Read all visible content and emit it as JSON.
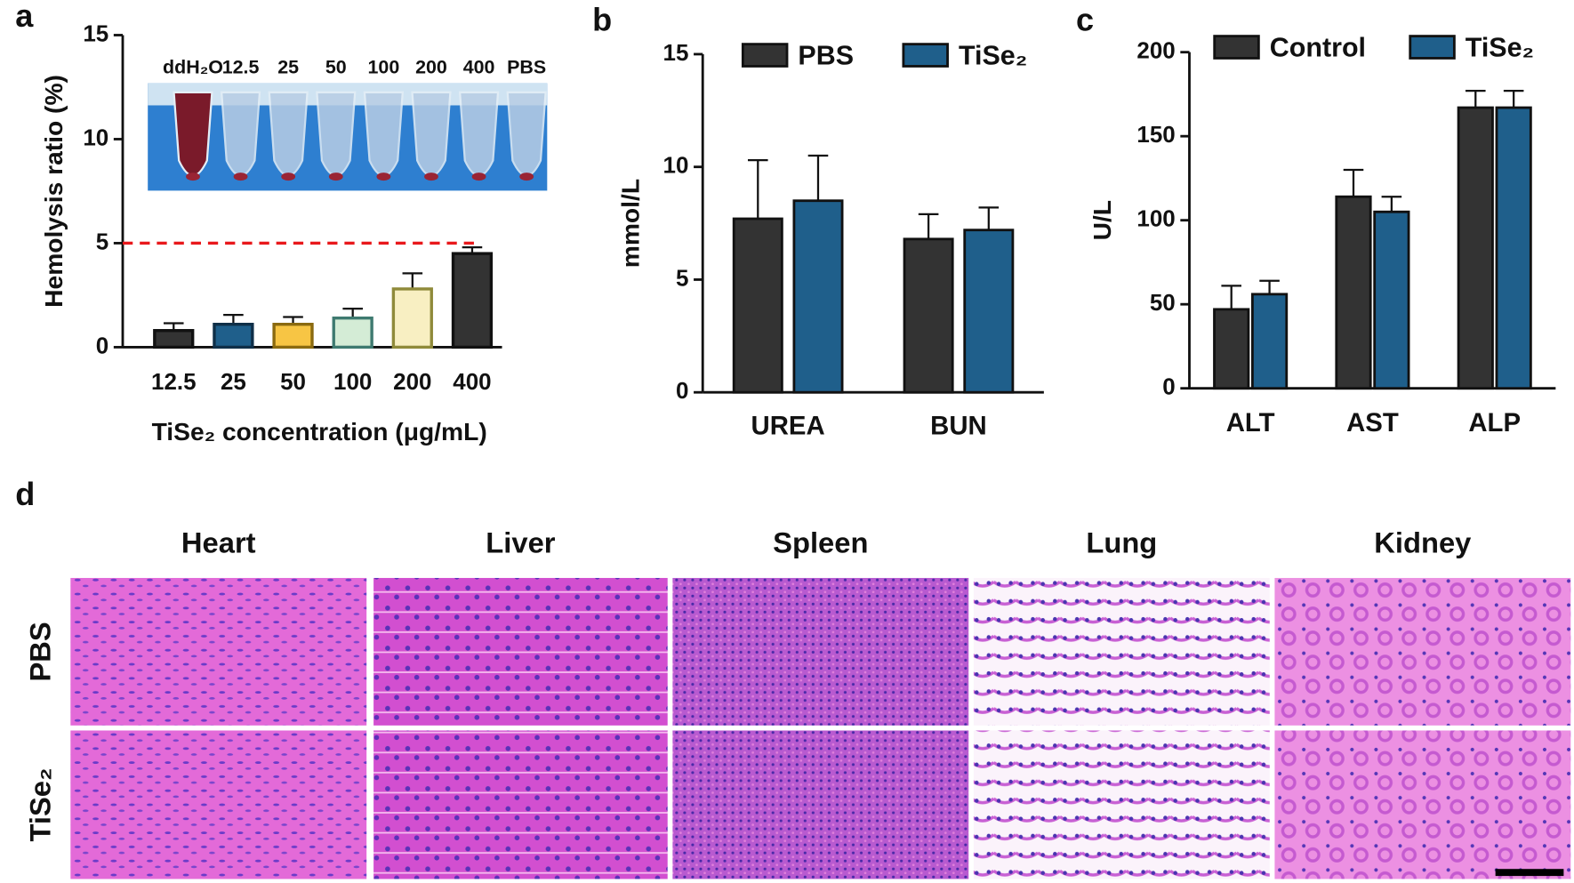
{
  "chart_data": [
    {
      "type": "bar",
      "panel_label": "a",
      "ylabel": "Hemolysis ratio (%)",
      "xlabel": "TiSe₂ concentration (μg/mL)",
      "categories": [
        "12.5",
        "25",
        "50",
        "100",
        "200",
        "400"
      ],
      "values": [
        0.8,
        1.1,
        1.1,
        1.4,
        2.8,
        4.5
      ],
      "errors": [
        0.35,
        0.45,
        0.35,
        0.45,
        0.75,
        0.3
      ],
      "colors": [
        "#333333",
        "#1f5f8b",
        "#f7c544",
        "#d4ecd6",
        "#f8efc2",
        "#333333"
      ],
      "edge_colors": [
        "#111111",
        "#0f2f48",
        "#8a6a10",
        "#3e7a70",
        "#8f8a3a",
        "#111111"
      ],
      "ylim": [
        0,
        15
      ],
      "yticks": [
        0,
        5,
        10,
        15
      ],
      "hline": 5,
      "hline_color": "#e8191c",
      "inset_labels": [
        "ddH₂O",
        "12.5",
        "25",
        "50",
        "100",
        "200",
        "400",
        "PBS"
      ]
    },
    {
      "type": "grouped_bar",
      "panel_label": "b",
      "ylabel": "mmol/L",
      "legend": "top",
      "categories": [
        "UREA",
        "BUN"
      ],
      "series": [
        {
          "name": "PBS",
          "color": "#333333",
          "values": [
            7.7,
            6.8
          ],
          "errors": [
            2.6,
            1.1
          ]
        },
        {
          "name": "TiSe₂",
          "color": "#1f5f8b",
          "values": [
            8.5,
            7.2
          ],
          "errors": [
            2.0,
            1.0
          ]
        }
      ],
      "ylim": [
        0,
        15
      ],
      "yticks": [
        0,
        5,
        10,
        15
      ]
    },
    {
      "type": "grouped_bar",
      "panel_label": "c",
      "ylabel": "U/L",
      "legend": "top",
      "categories": [
        "ALT",
        "AST",
        "ALP"
      ],
      "series": [
        {
          "name": "Control",
          "color": "#333333",
          "values": [
            47,
            114,
            167
          ],
          "errors": [
            14,
            16,
            10
          ]
        },
        {
          "name": "TiSe₂",
          "color": "#1f5f8b",
          "values": [
            56,
            105,
            167
          ],
          "errors": [
            8,
            9,
            10
          ]
        }
      ],
      "ylim": [
        0,
        200
      ],
      "yticks": [
        0,
        50,
        100,
        150,
        200
      ]
    }
  ],
  "panel_d": {
    "label": "d",
    "columns": [
      "Heart",
      "Liver",
      "Spleen",
      "Lung",
      "Kidney"
    ],
    "rows": [
      "PBS",
      "TiSe₂"
    ]
  }
}
